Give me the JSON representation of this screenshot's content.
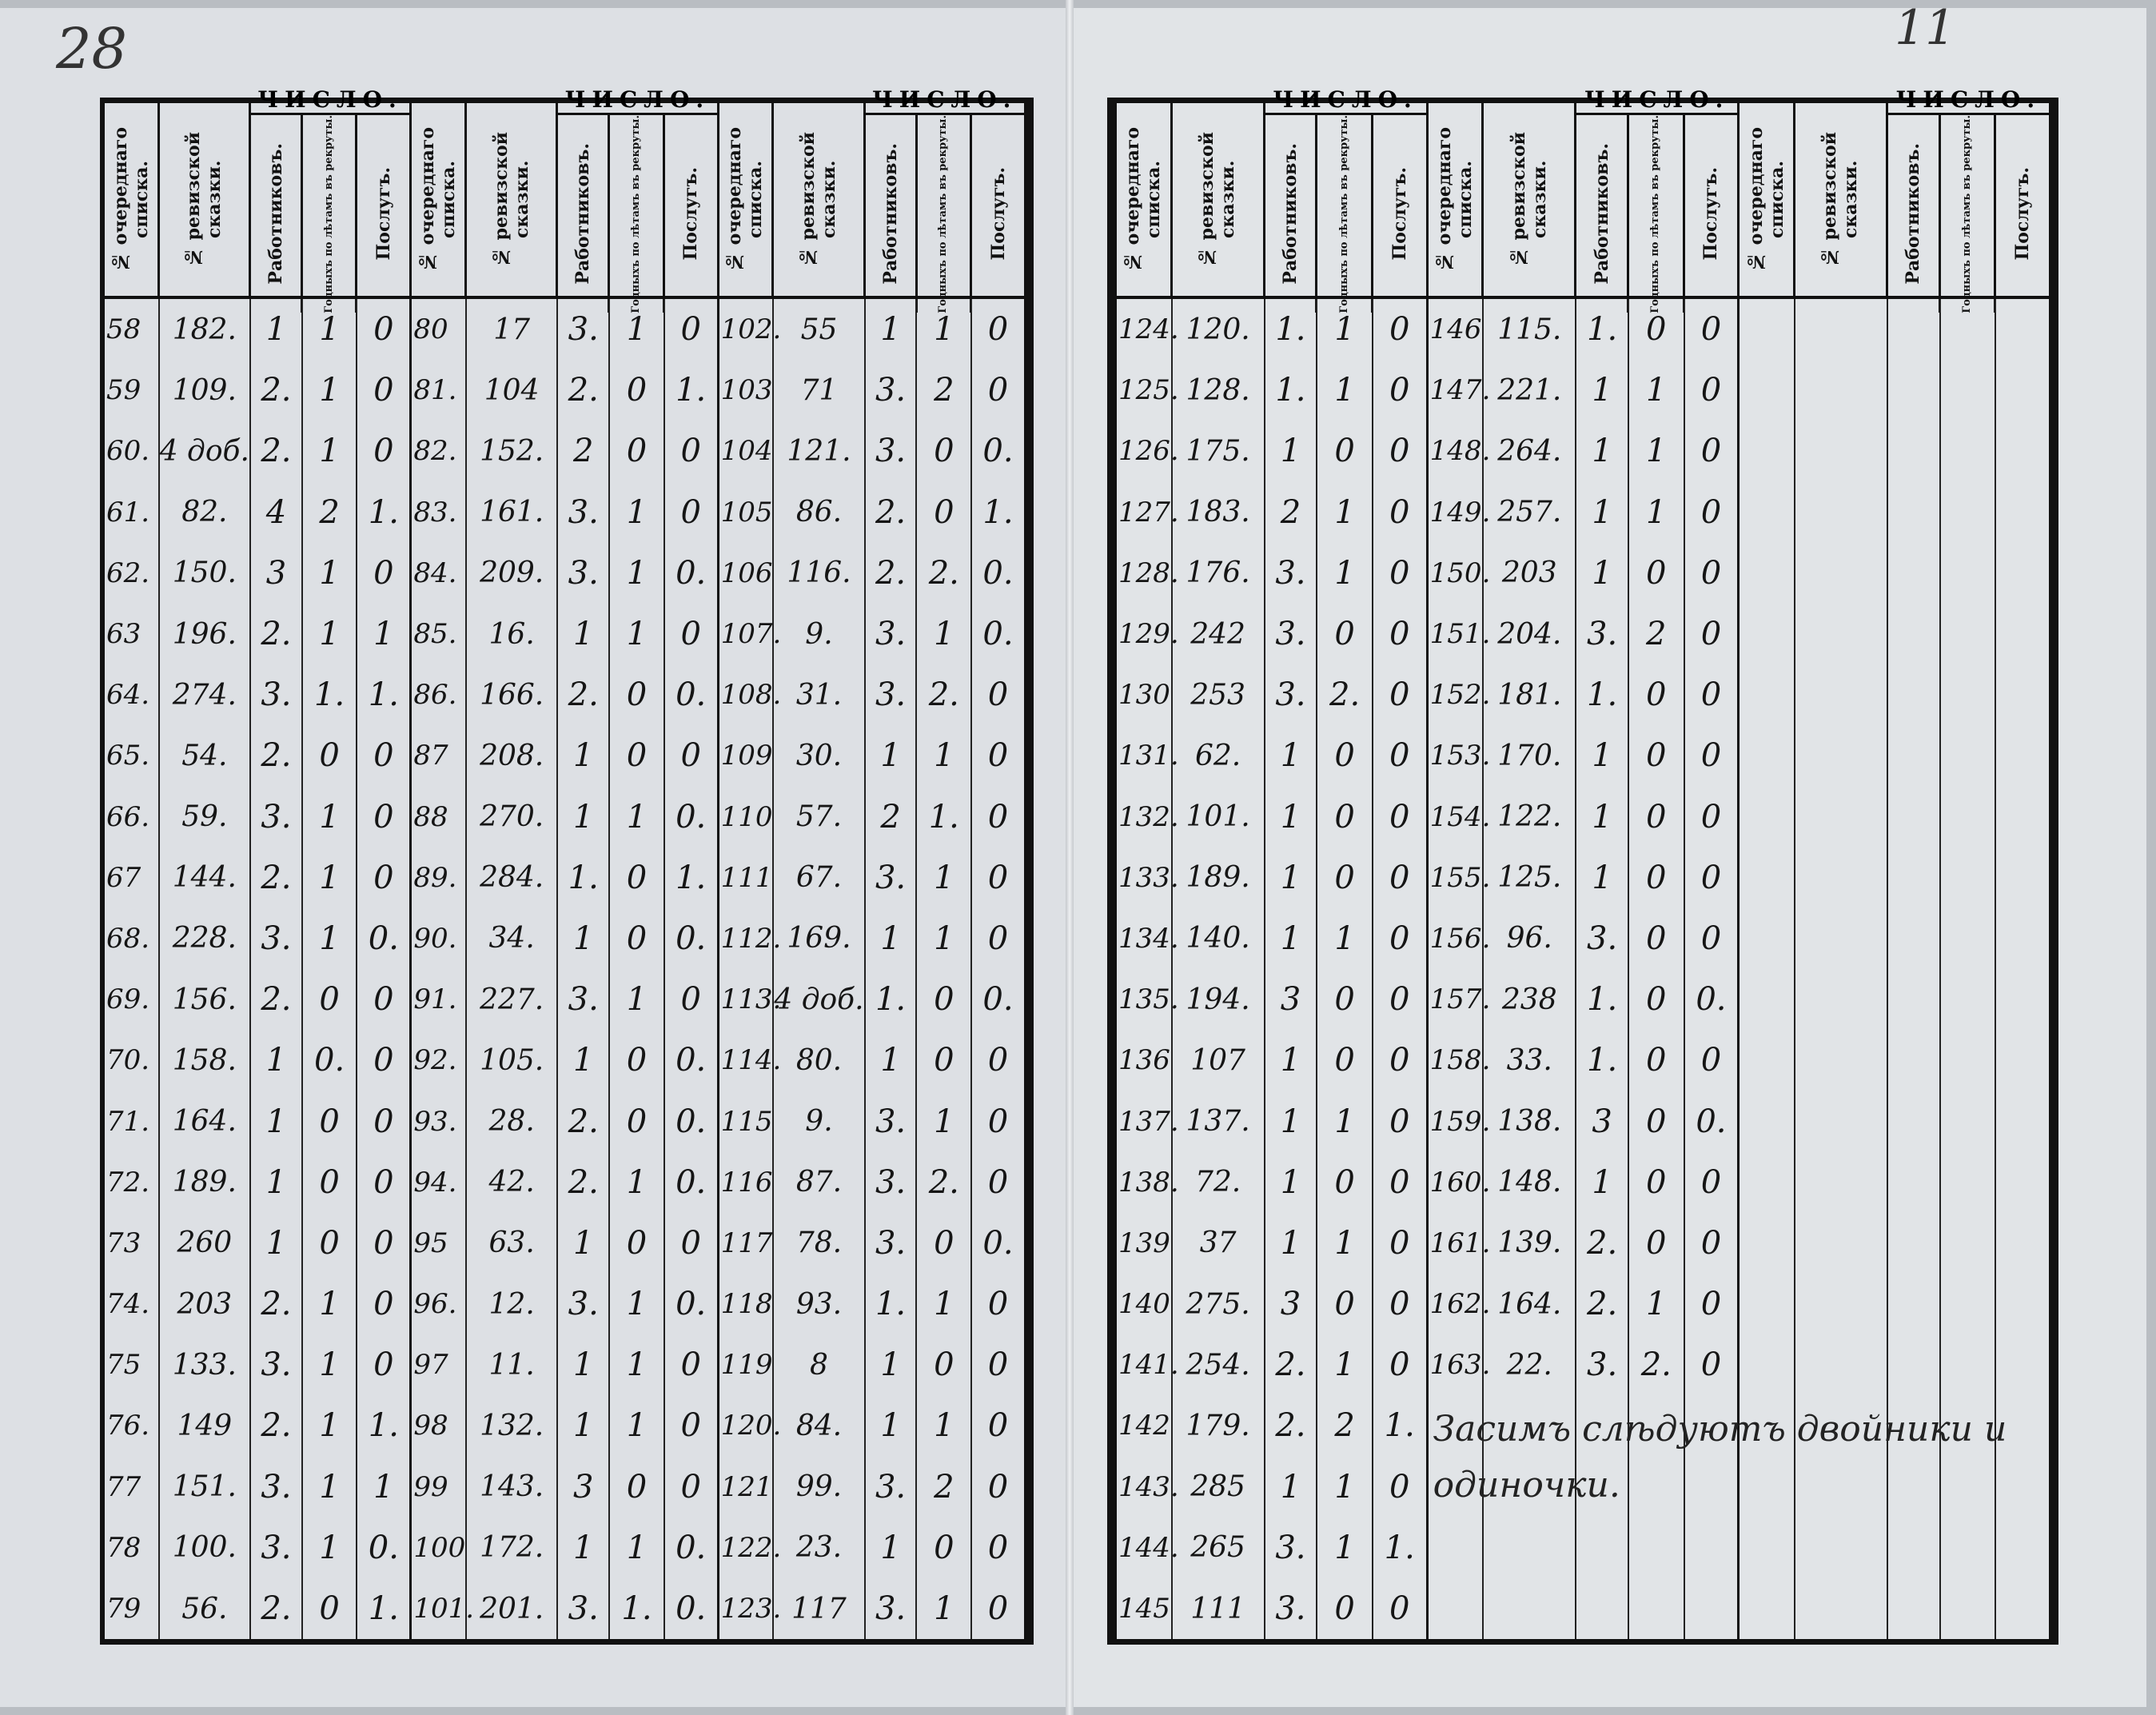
{
  "corner_marks": {
    "left": "28",
    "right": "11"
  },
  "headers": {
    "list_no": "№ очереднаго списка.",
    "revision_no": "№ ревизской сказки.",
    "number": "ЧИСЛО.",
    "workers": "Работниковъ.",
    "fit_recruits": "Годныхъ по лѣтамъ въ рекруты.",
    "services": "Послугъ."
  },
  "pages": [
    {
      "groups": [
        {
          "rows": [
            [
              "58",
              "182.",
              "1",
              "1",
              "0"
            ],
            [
              "59",
              "109.",
              "2.",
              "1",
              "0"
            ],
            [
              "60.",
              "4 доб.",
              "2.",
              "1",
              "0"
            ],
            [
              "61.",
              "82.",
              "4",
              "2",
              "1."
            ],
            [
              "62.",
              "150.",
              "3",
              "1",
              "0"
            ],
            [
              "63",
              "196.",
              "2.",
              "1",
              "1"
            ],
            [
              "64.",
              "274.",
              "3.",
              "1.",
              "1."
            ],
            [
              "65.",
              "54.",
              "2.",
              "0",
              "0"
            ],
            [
              "66.",
              "59.",
              "3.",
              "1",
              "0"
            ],
            [
              "67",
              "144.",
              "2.",
              "1",
              "0"
            ],
            [
              "68.",
              "228.",
              "3.",
              "1",
              "0."
            ],
            [
              "69.",
              "156.",
              "2.",
              "0",
              "0"
            ],
            [
              "70.",
              "158.",
              "1",
              "0.",
              "0"
            ],
            [
              "71.",
              "164.",
              "1",
              "0",
              "0"
            ],
            [
              "72.",
              "189.",
              "1",
              "0",
              "0"
            ],
            [
              "73",
              "260",
              "1",
              "0",
              "0"
            ],
            [
              "74.",
              "203",
              "2.",
              "1",
              "0"
            ],
            [
              "75",
              "133.",
              "3.",
              "1",
              "0"
            ],
            [
              "76.",
              "149",
              "2.",
              "1",
              "1."
            ],
            [
              "77",
              "151.",
              "3.",
              "1",
              "1"
            ],
            [
              "78",
              "100.",
              "3.",
              "1",
              "0."
            ],
            [
              "79",
              "56.",
              "2.",
              "0",
              "1."
            ]
          ]
        },
        {
          "rows": [
            [
              "80",
              "17",
              "3.",
              "1",
              "0"
            ],
            [
              "81.",
              "104",
              "2.",
              "0",
              "1."
            ],
            [
              "82.",
              "152.",
              "2",
              "0",
              "0"
            ],
            [
              "83.",
              "161.",
              "3.",
              "1",
              "0"
            ],
            [
              "84.",
              "209.",
              "3.",
              "1",
              "0."
            ],
            [
              "85.",
              "16.",
              "1",
              "1",
              "0"
            ],
            [
              "86.",
              "166.",
              "2.",
              "0",
              "0."
            ],
            [
              "87",
              "208.",
              "1",
              "0",
              "0"
            ],
            [
              "88",
              "270.",
              "1",
              "1",
              "0."
            ],
            [
              "89.",
              "284.",
              "1.",
              "0",
              "1."
            ],
            [
              "90.",
              "34.",
              "1",
              "0",
              "0."
            ],
            [
              "91.",
              "227.",
              "3.",
              "1",
              "0"
            ],
            [
              "92.",
              "105.",
              "1",
              "0",
              "0."
            ],
            [
              "93.",
              "28.",
              "2.",
              "0",
              "0."
            ],
            [
              "94.",
              "42.",
              "2.",
              "1",
              "0."
            ],
            [
              "95",
              "63.",
              "1",
              "0",
              "0"
            ],
            [
              "96.",
              "12.",
              "3.",
              "1",
              "0."
            ],
            [
              "97",
              "11.",
              "1",
              "1",
              "0"
            ],
            [
              "98",
              "132.",
              "1",
              "1",
              "0"
            ],
            [
              "99",
              "143.",
              "3",
              "0",
              "0"
            ],
            [
              "100",
              "172.",
              "1",
              "1",
              "0."
            ],
            [
              "101.",
              "201.",
              "3.",
              "1.",
              "0."
            ]
          ]
        },
        {
          "rows": [
            [
              "102.",
              "55",
              "1",
              "1",
              "0"
            ],
            [
              "103",
              "71",
              "3.",
              "2",
              "0"
            ],
            [
              "104",
              "121.",
              "3.",
              "0",
              "0."
            ],
            [
              "105",
              "86.",
              "2.",
              "0",
              "1."
            ],
            [
              "106",
              "116.",
              "2.",
              "2.",
              "0."
            ],
            [
              "107.",
              "9.",
              "3.",
              "1",
              "0."
            ],
            [
              "108.",
              "31.",
              "3.",
              "2.",
              "0"
            ],
            [
              "109",
              "30.",
              "1",
              "1",
              "0"
            ],
            [
              "110",
              "57.",
              "2",
              "1.",
              "0"
            ],
            [
              "111",
              "67.",
              "3.",
              "1",
              "0"
            ],
            [
              "112.",
              "169.",
              "1",
              "1",
              "0"
            ],
            [
              "113.",
              "4 доб.",
              "1.",
              "0",
              "0."
            ],
            [
              "114.",
              "80.",
              "1",
              "0",
              "0"
            ],
            [
              "115",
              "9.",
              "3.",
              "1",
              "0"
            ],
            [
              "116",
              "87.",
              "3.",
              "2.",
              "0"
            ],
            [
              "117",
              "78.",
              "3.",
              "0",
              "0."
            ],
            [
              "118",
              "93.",
              "1.",
              "1",
              "0"
            ],
            [
              "119",
              "8",
              "1",
              "0",
              "0"
            ],
            [
              "120.",
              "84.",
              "1",
              "1",
              "0"
            ],
            [
              "121",
              "99.",
              "3.",
              "2",
              "0"
            ],
            [
              "122.",
              "23.",
              "1",
              "0",
              "0"
            ],
            [
              "123.",
              "117",
              "3.",
              "1",
              "0"
            ]
          ]
        }
      ]
    },
    {
      "groups": [
        {
          "rows": [
            [
              "124.",
              "120.",
              "1.",
              "1",
              "0"
            ],
            [
              "125.",
              "128.",
              "1.",
              "1",
              "0"
            ],
            [
              "126.",
              "175.",
              "1",
              "0",
              "0"
            ],
            [
              "127.",
              "183.",
              "2",
              "1",
              "0"
            ],
            [
              "128.",
              "176.",
              "3.",
              "1",
              "0"
            ],
            [
              "129.",
              "242",
              "3.",
              "0",
              "0"
            ],
            [
              "130",
              "253",
              "3.",
              "2.",
              "0"
            ],
            [
              "131.",
              "62.",
              "1",
              "0",
              "0"
            ],
            [
              "132.",
              "101.",
              "1",
              "0",
              "0"
            ],
            [
              "133.",
              "189.",
              "1",
              "0",
              "0"
            ],
            [
              "134.",
              "140.",
              "1",
              "1",
              "0"
            ],
            [
              "135.",
              "194.",
              "3",
              "0",
              "0"
            ],
            [
              "136",
              "107",
              "1",
              "0",
              "0"
            ],
            [
              "137.",
              "137.",
              "1",
              "1",
              "0"
            ],
            [
              "138.",
              "72.",
              "1",
              "0",
              "0"
            ],
            [
              "139",
              "37",
              "1",
              "1",
              "0"
            ],
            [
              "140",
              "275.",
              "3",
              "0",
              "0"
            ],
            [
              "141.",
              "254.",
              "2.",
              "1",
              "0"
            ],
            [
              "142",
              "179.",
              "2.",
              "2",
              "1."
            ],
            [
              "143.",
              "285",
              "1",
              "1",
              "0"
            ],
            [
              "144.",
              "265",
              "3.",
              "1",
              "1."
            ],
            [
              "145",
              "111",
              "3.",
              "0",
              "0"
            ]
          ]
        },
        {
          "rows": [
            [
              "146",
              "115.",
              "1.",
              "0",
              "0"
            ],
            [
              "147.",
              "221.",
              "1",
              "1",
              "0"
            ],
            [
              "148.",
              "264.",
              "1",
              "1",
              "0"
            ],
            [
              "149.",
              "257.",
              "1",
              "1",
              "0"
            ],
            [
              "150.",
              "203",
              "1",
              "0",
              "0"
            ],
            [
              "151.",
              "204.",
              "3.",
              "2",
              "0"
            ],
            [
              "152.",
              "181.",
              "1.",
              "0",
              "0"
            ],
            [
              "153.",
              "170.",
              "1",
              "0",
              "0"
            ],
            [
              "154.",
              "122.",
              "1",
              "0",
              "0"
            ],
            [
              "155.",
              "125.",
              "1",
              "0",
              "0"
            ],
            [
              "156.",
              "96.",
              "3.",
              "0",
              "0"
            ],
            [
              "157.",
              "238",
              "1.",
              "0",
              "0."
            ],
            [
              "158.",
              "33.",
              "1.",
              "0",
              "0"
            ],
            [
              "159.",
              "138.",
              "3",
              "0",
              "0."
            ],
            [
              "160.",
              "148.",
              "1",
              "0",
              "0"
            ],
            [
              "161.",
              "139.",
              "2.",
              "0",
              "0"
            ],
            [
              "162.",
              "164.",
              "2.",
              "1",
              "0"
            ],
            [
              "163.",
              "22.",
              "3.",
              "2.",
              "0"
            ]
          ]
        },
        {
          "rows": []
        }
      ]
    }
  ],
  "note": "Засимъ слѣдуютъ двойники и одиночки."
}
